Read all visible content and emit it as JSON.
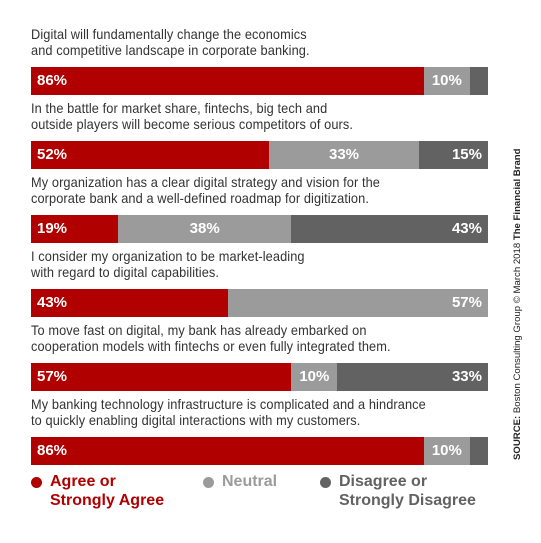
{
  "colors": {
    "agree": "#b00000",
    "neutral": "#9b9b9b",
    "disagree": "#626262",
    "question_text": "#333333"
  },
  "chart_data": {
    "type": "bar",
    "orientation": "horizontal",
    "stacked": true,
    "categories": [
      "Digital will fundamentally change the economics\nand competitive landscape in corporate banking.",
      "In the battle for market share, fintechs, big tech and\noutside players will become serious competitors of ours.",
      "My organization has a clear digital strategy and vision for the\ncorporate bank and a well-defined roadmap for digitization.",
      "I consider my organization to be market-leading\nwith regard to digital capabilities.",
      "To move fast on digital, my bank has already embarked on\ncooperation models with fintechs or even fully integrated them.",
      "My banking technology infrastructure is complicated and a hindrance\nto quickly enabling digital interactions with my customers."
    ],
    "series": [
      {
        "name": "Agree or Strongly Agree",
        "values": [
          86,
          52,
          19,
          43,
          57,
          86
        ]
      },
      {
        "name": "Neutral",
        "values": [
          10,
          33,
          38,
          57,
          10,
          10
        ]
      },
      {
        "name": "Disagree or Strongly Disagree",
        "values": [
          4,
          15,
          43,
          0,
          33,
          4
        ]
      }
    ],
    "data_labels": [
      [
        "86%",
        "10%",
        ""
      ],
      [
        "52%",
        "33%",
        "15%"
      ],
      [
        "19%",
        "38%",
        "43%"
      ],
      [
        "43%",
        "57%",
        ""
      ],
      [
        "57%",
        "10%",
        "33%"
      ],
      [
        "86%",
        "10%",
        ""
      ]
    ],
    "legend_position": "bottom"
  },
  "legend": [
    {
      "label": "Agree or\nStrongly Agree"
    },
    {
      "label": "Neutral"
    },
    {
      "label": "Disagree or\nStrongly Disagree"
    }
  ],
  "source": {
    "label": "SOURCE:",
    "text": "Boston Consulting Group © March 2018",
    "brand": "The Financial Brand"
  }
}
